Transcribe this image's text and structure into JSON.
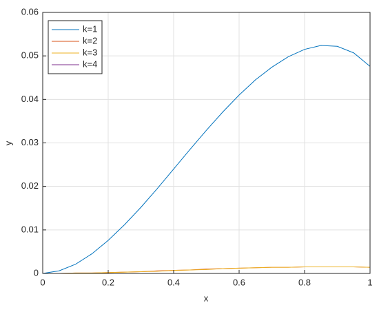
{
  "chart_data": {
    "type": "line",
    "xlabel": "x",
    "ylabel": "y",
    "x": [
      0,
      0.05,
      0.1,
      0.15,
      0.2,
      0.25,
      0.3,
      0.35,
      0.4,
      0.45,
      0.5,
      0.55,
      0.6,
      0.65,
      0.7,
      0.75,
      0.8,
      0.85,
      0.9,
      0.95,
      1
    ],
    "series": [
      {
        "name": "k=1",
        "color": "#0072bd",
        "values": [
          0,
          0.0006,
          0.0021,
          0.0045,
          0.0076,
          0.0112,
          0.0152,
          0.0195,
          0.024,
          0.0285,
          0.0329,
          0.0371,
          0.041,
          0.0445,
          0.0474,
          0.0498,
          0.0515,
          0.0524,
          0.0522,
          0.0507,
          0.0476
        ]
      },
      {
        "name": "k=2",
        "color": "#d95319",
        "values": [
          0,
          0,
          0.0001,
          0.0001,
          0.0002,
          0.0003,
          0.0004,
          0.0006,
          0.0007,
          0.0008,
          0.001,
          0.0011,
          0.0012,
          0.0013,
          0.0014,
          0.0014,
          0.0015,
          0.0015,
          0.0015,
          0.0015,
          0.0014
        ]
      },
      {
        "name": "k=3",
        "color": "#edb120",
        "values": [
          0,
          0,
          0.0001,
          0.0001,
          0.0002,
          0.0003,
          0.0004,
          0.0005,
          0.0007,
          0.0008,
          0.0009,
          0.0011,
          0.0012,
          0.0013,
          0.0014,
          0.0014,
          0.0015,
          0.0015,
          0.0015,
          0.0015,
          0.0014
        ]
      },
      {
        "name": "k=4",
        "color": "#7e2f8e",
        "values": [
          0,
          0,
          0,
          0,
          0,
          0,
          0,
          0,
          0,
          0,
          0,
          0,
          0,
          0,
          0,
          0,
          0,
          0,
          0,
          0,
          0
        ]
      }
    ],
    "xlim": [
      0,
      1
    ],
    "xticks": [
      0,
      0.2,
      0.4,
      0.6,
      0.8,
      1
    ],
    "ylim": [
      0,
      0.06
    ],
    "yticks": [
      0,
      0.01,
      0.02,
      0.03,
      0.04,
      0.05,
      0.06
    ],
    "grid": true,
    "legend": "upper-left"
  }
}
